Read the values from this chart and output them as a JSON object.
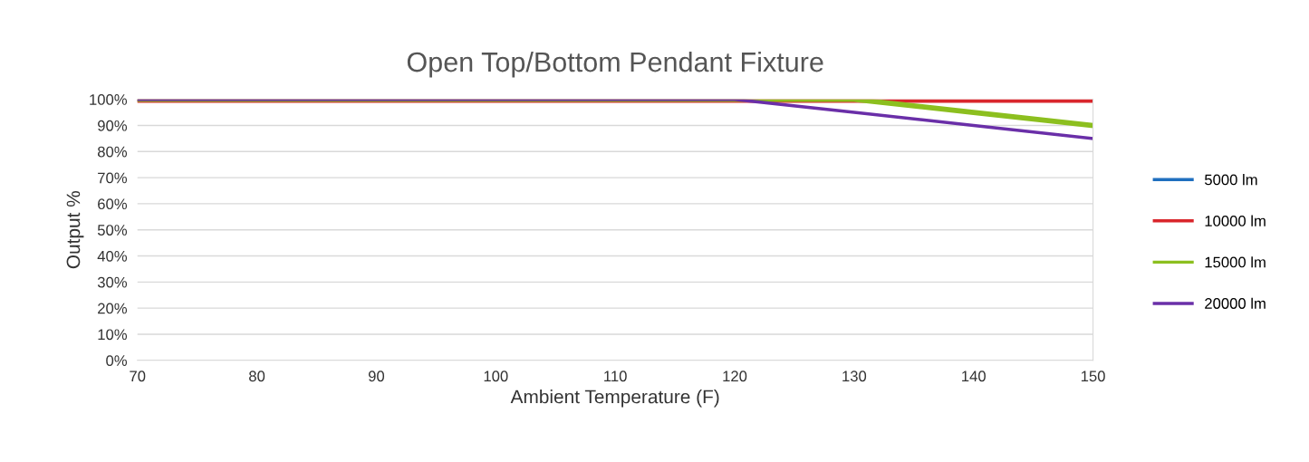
{
  "chart_data": {
    "type": "line",
    "title": "Open Top/Bottom Pendant Fixture",
    "xlabel": "Ambient Temperature (F)",
    "ylabel": "Output %",
    "x": [
      70,
      120,
      130,
      140,
      150
    ],
    "series": [
      {
        "name": "5000 lm",
        "color": "#1f6fbf",
        "values": [
          null,
          null,
          null,
          null,
          null
        ]
      },
      {
        "name": "10000 lm",
        "color": "#d9262c",
        "values": [
          100,
          100,
          100,
          100,
          100
        ]
      },
      {
        "name": "15000 lm",
        "color": "#8cbf1f",
        "values": [
          100,
          100,
          100,
          95,
          90
        ]
      },
      {
        "name": "20000 lm",
        "color": "#6a2fa8",
        "values": [
          100,
          100,
          95,
          90,
          85
        ]
      }
    ],
    "xlim": [
      70,
      150
    ],
    "xticks": [
      70,
      80,
      90,
      100,
      110,
      120,
      130,
      140,
      150
    ],
    "ylim": [
      0,
      100
    ],
    "yticks": [
      {
        "value": 0,
        "label": "0%"
      },
      {
        "value": 10,
        "label": "10%"
      },
      {
        "value": 20,
        "label": "20%"
      },
      {
        "value": 30,
        "label": "30%"
      },
      {
        "value": 40,
        "label": "40%"
      },
      {
        "value": 50,
        "label": "50%"
      },
      {
        "value": 60,
        "label": "60%"
      },
      {
        "value": 70,
        "label": "70%"
      },
      {
        "value": 80,
        "label": "80%"
      },
      {
        "value": 90,
        "label": "90%"
      },
      {
        "value": 100,
        "label": "100%"
      }
    ],
    "grid": "y",
    "legend": "right",
    "marker": "none",
    "line_style": "solid"
  }
}
